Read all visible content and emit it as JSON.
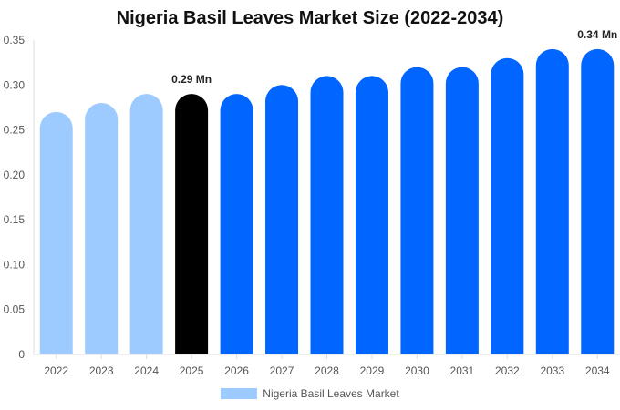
{
  "chart_data": {
    "type": "bar",
    "title": "Nigeria Basil Leaves Market Size (2022-2034)",
    "xlabel": "",
    "ylabel": "",
    "categories": [
      "2022",
      "2023",
      "2024",
      "2025",
      "2026",
      "2027",
      "2028",
      "2029",
      "2030",
      "2031",
      "2032",
      "2033",
      "2034"
    ],
    "series": [
      {
        "name": "Nigeria Basil Leaves Market",
        "values": [
          0.27,
          0.28,
          0.29,
          0.29,
          0.29,
          0.3,
          0.31,
          0.31,
          0.32,
          0.32,
          0.33,
          0.34,
          0.34
        ]
      }
    ],
    "bar_colors": [
      "#9ecbff",
      "#9ecbff",
      "#9ecbff",
      "#000000",
      "#0066ff",
      "#0066ff",
      "#0066ff",
      "#0066ff",
      "#0066ff",
      "#0066ff",
      "#0066ff",
      "#0066ff",
      "#0066ff"
    ],
    "ylim": [
      0,
      0.35
    ],
    "y_ticks": [
      "0",
      "0.05",
      "0.10",
      "0.15",
      "0.20",
      "0.25",
      "0.30",
      "0.35"
    ],
    "data_labels": [
      {
        "category": "2025",
        "text": "0.29 Mn"
      },
      {
        "category": "2034",
        "text": "0.34 Mn"
      }
    ],
    "legend": {
      "label": "Nigeria Basil Leaves Market",
      "color": "#9ecbff",
      "position": "bottom"
    },
    "grid": false
  }
}
